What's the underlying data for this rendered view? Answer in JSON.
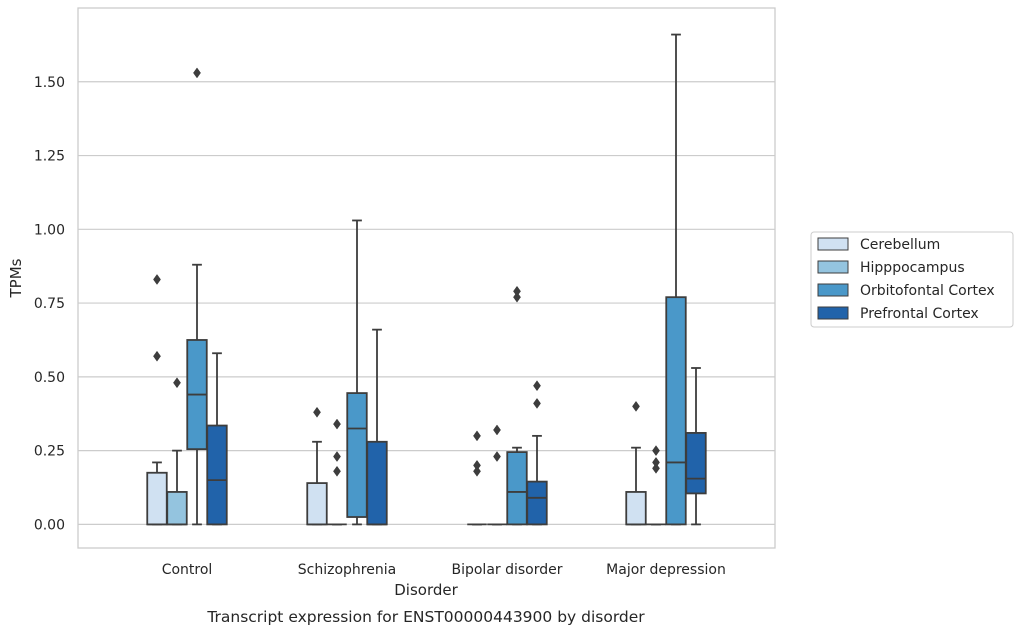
{
  "caption": "Transcript expression for ENST00000443900 by disorder",
  "chart_data": {
    "type": "box",
    "xlabel": "Disorder",
    "ylabel": "TPMs",
    "ylim": [
      -0.08,
      1.75
    ],
    "yticks": [
      0.0,
      0.25,
      0.5,
      0.75,
      1.0,
      1.25,
      1.5
    ],
    "ytick_labels": [
      "0.00",
      "0.25",
      "0.50",
      "0.75",
      "1.00",
      "1.25",
      "1.50"
    ],
    "grid": "horizontal",
    "legend_position": "right",
    "categories": [
      "Control",
      "Schizophrenia",
      "Bipolar disorder",
      "Major depression"
    ],
    "series": [
      {
        "name": "Cerebellum",
        "color": "#d0e1f2",
        "boxes": [
          {
            "category": "Control",
            "min": 0.0,
            "q1": 0.0,
            "median": 0.0,
            "q3": 0.175,
            "max": 0.21,
            "outliers": [
              0.57,
              0.83
            ]
          },
          {
            "category": "Schizophrenia",
            "min": 0.0,
            "q1": 0.0,
            "median": 0.0,
            "q3": 0.14,
            "max": 0.28,
            "outliers": [
              0.38
            ]
          },
          {
            "category": "Bipolar disorder",
            "min": 0.0,
            "q1": 0.0,
            "median": 0.0,
            "q3": 0.0,
            "max": 0.0,
            "outliers": [
              0.18,
              0.2,
              0.3
            ]
          },
          {
            "category": "Major depression",
            "min": 0.0,
            "q1": 0.0,
            "median": 0.0,
            "q3": 0.11,
            "max": 0.26,
            "outliers": [
              0.4
            ]
          }
        ]
      },
      {
        "name": "Hipppocampus",
        "color": "#94c4df",
        "boxes": [
          {
            "category": "Control",
            "min": 0.0,
            "q1": 0.0,
            "median": 0.0,
            "q3": 0.11,
            "max": 0.25,
            "outliers": [
              0.48
            ]
          },
          {
            "category": "Schizophrenia",
            "min": 0.0,
            "q1": 0.0,
            "median": 0.0,
            "q3": 0.0,
            "max": 0.0,
            "outliers": [
              0.18,
              0.23,
              0.34
            ]
          },
          {
            "category": "Bipolar disorder",
            "min": 0.0,
            "q1": 0.0,
            "median": 0.0,
            "q3": 0.0,
            "max": 0.0,
            "outliers": [
              0.23,
              0.32
            ]
          },
          {
            "category": "Major depression",
            "min": 0.0,
            "q1": 0.0,
            "median": 0.0,
            "q3": 0.0,
            "max": 0.0,
            "outliers": [
              0.19,
              0.21,
              0.25
            ]
          }
        ]
      },
      {
        "name": "Orbitofontal Cortex",
        "color": "#4a98c9",
        "boxes": [
          {
            "category": "Control",
            "min": 0.0,
            "q1": 0.255,
            "median": 0.44,
            "q3": 0.625,
            "max": 0.88,
            "outliers": [
              1.53
            ]
          },
          {
            "category": "Schizophrenia",
            "min": 0.0,
            "q1": 0.025,
            "median": 0.325,
            "q3": 0.445,
            "max": 1.03,
            "outliers": []
          },
          {
            "category": "Bipolar disorder",
            "min": 0.0,
            "q1": 0.0,
            "median": 0.11,
            "q3": 0.245,
            "max": 0.26,
            "outliers": [
              0.77,
              0.79
            ]
          },
          {
            "category": "Major depression",
            "min": 0.0,
            "q1": 0.0,
            "median": 0.21,
            "q3": 0.77,
            "max": 1.66,
            "outliers": []
          }
        ]
      },
      {
        "name": "Prefrontal Cortex",
        "color": "#2163aa",
        "boxes": [
          {
            "category": "Control",
            "min": 0.0,
            "q1": 0.0,
            "median": 0.15,
            "q3": 0.335,
            "max": 0.58,
            "outliers": []
          },
          {
            "category": "Schizophrenia",
            "min": 0.0,
            "q1": 0.0,
            "median": 0.0,
            "q3": 0.28,
            "max": 0.66,
            "outliers": []
          },
          {
            "category": "Bipolar disorder",
            "min": 0.0,
            "q1": 0.0,
            "median": 0.09,
            "q3": 0.145,
            "max": 0.3,
            "outliers": [
              0.41,
              0.47
            ]
          },
          {
            "category": "Major depression",
            "min": 0.0,
            "q1": 0.105,
            "median": 0.155,
            "q3": 0.31,
            "max": 0.53,
            "outliers": []
          }
        ]
      }
    ]
  }
}
